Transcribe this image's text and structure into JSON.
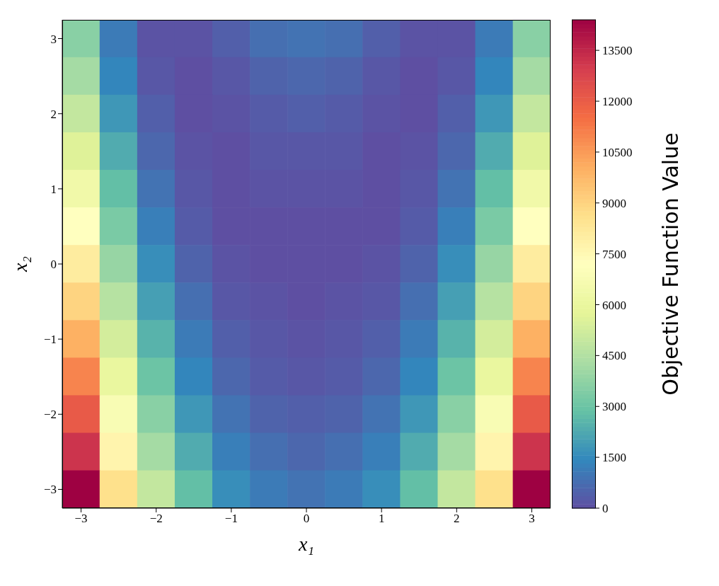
{
  "chart_data": {
    "type": "heatmap",
    "xlabel": "x₁",
    "ylabel": "x₂",
    "clabel": "Objective Function Value",
    "categories": [
      "−3",
      null,
      "−2",
      null,
      "−1",
      null,
      "0",
      null,
      "1",
      null,
      "2",
      null,
      "3"
    ],
    "y_categories": [
      "3",
      null,
      "2",
      null,
      "1",
      null,
      "0",
      null,
      "−1",
      null,
      "−2",
      null,
      "−3"
    ],
    "clim": [
      0,
      14400
    ],
    "cticks": [
      0,
      1500,
      3000,
      4500,
      6000,
      7500,
      9000,
      10500,
      12000,
      13500
    ],
    "cells": [
      [
        3600,
        1100,
        100,
        100,
        400,
        800,
        900,
        800,
        400,
        100,
        100,
        1100,
        3600
      ],
      [
        4200,
        1400,
        200,
        0,
        200,
        500,
        600,
        500,
        200,
        0,
        200,
        1400,
        4200
      ],
      [
        4900,
        1800,
        400,
        0,
        100,
        300,
        400,
        300,
        100,
        0,
        400,
        1800,
        4900
      ],
      [
        5600,
        2300,
        600,
        100,
        0,
        200,
        200,
        200,
        0,
        100,
        600,
        2300,
        5600
      ],
      [
        6400,
        2800,
        900,
        200,
        0,
        100,
        100,
        100,
        0,
        200,
        900,
        2800,
        6400
      ],
      [
        7200,
        3300,
        1200,
        300,
        0,
        0,
        0,
        0,
        0,
        300,
        1200,
        3300,
        7200
      ],
      [
        8100,
        3900,
        1600,
        500,
        100,
        0,
        0,
        0,
        100,
        500,
        1600,
        3900,
        8100
      ],
      [
        9000,
        4600,
        2000,
        800,
        200,
        100,
        0,
        100,
        200,
        800,
        2000,
        4600,
        9000
      ],
      [
        10000,
        5300,
        2500,
        1100,
        400,
        200,
        100,
        200,
        400,
        1100,
        2500,
        5300,
        10000
      ],
      [
        11000,
        6000,
        3000,
        1400,
        600,
        300,
        200,
        300,
        600,
        1400,
        3000,
        6000,
        11000
      ],
      [
        12100,
        6800,
        3600,
        1800,
        900,
        500,
        400,
        500,
        900,
        1800,
        3600,
        6800,
        12100
      ],
      [
        13200,
        7700,
        4200,
        2300,
        1200,
        800,
        600,
        800,
        1200,
        2300,
        4200,
        7700,
        13200
      ],
      [
        14400,
        8600,
        4900,
        2800,
        1600,
        1100,
        900,
        1100,
        1600,
        2800,
        4900,
        8600,
        14400
      ]
    ]
  }
}
